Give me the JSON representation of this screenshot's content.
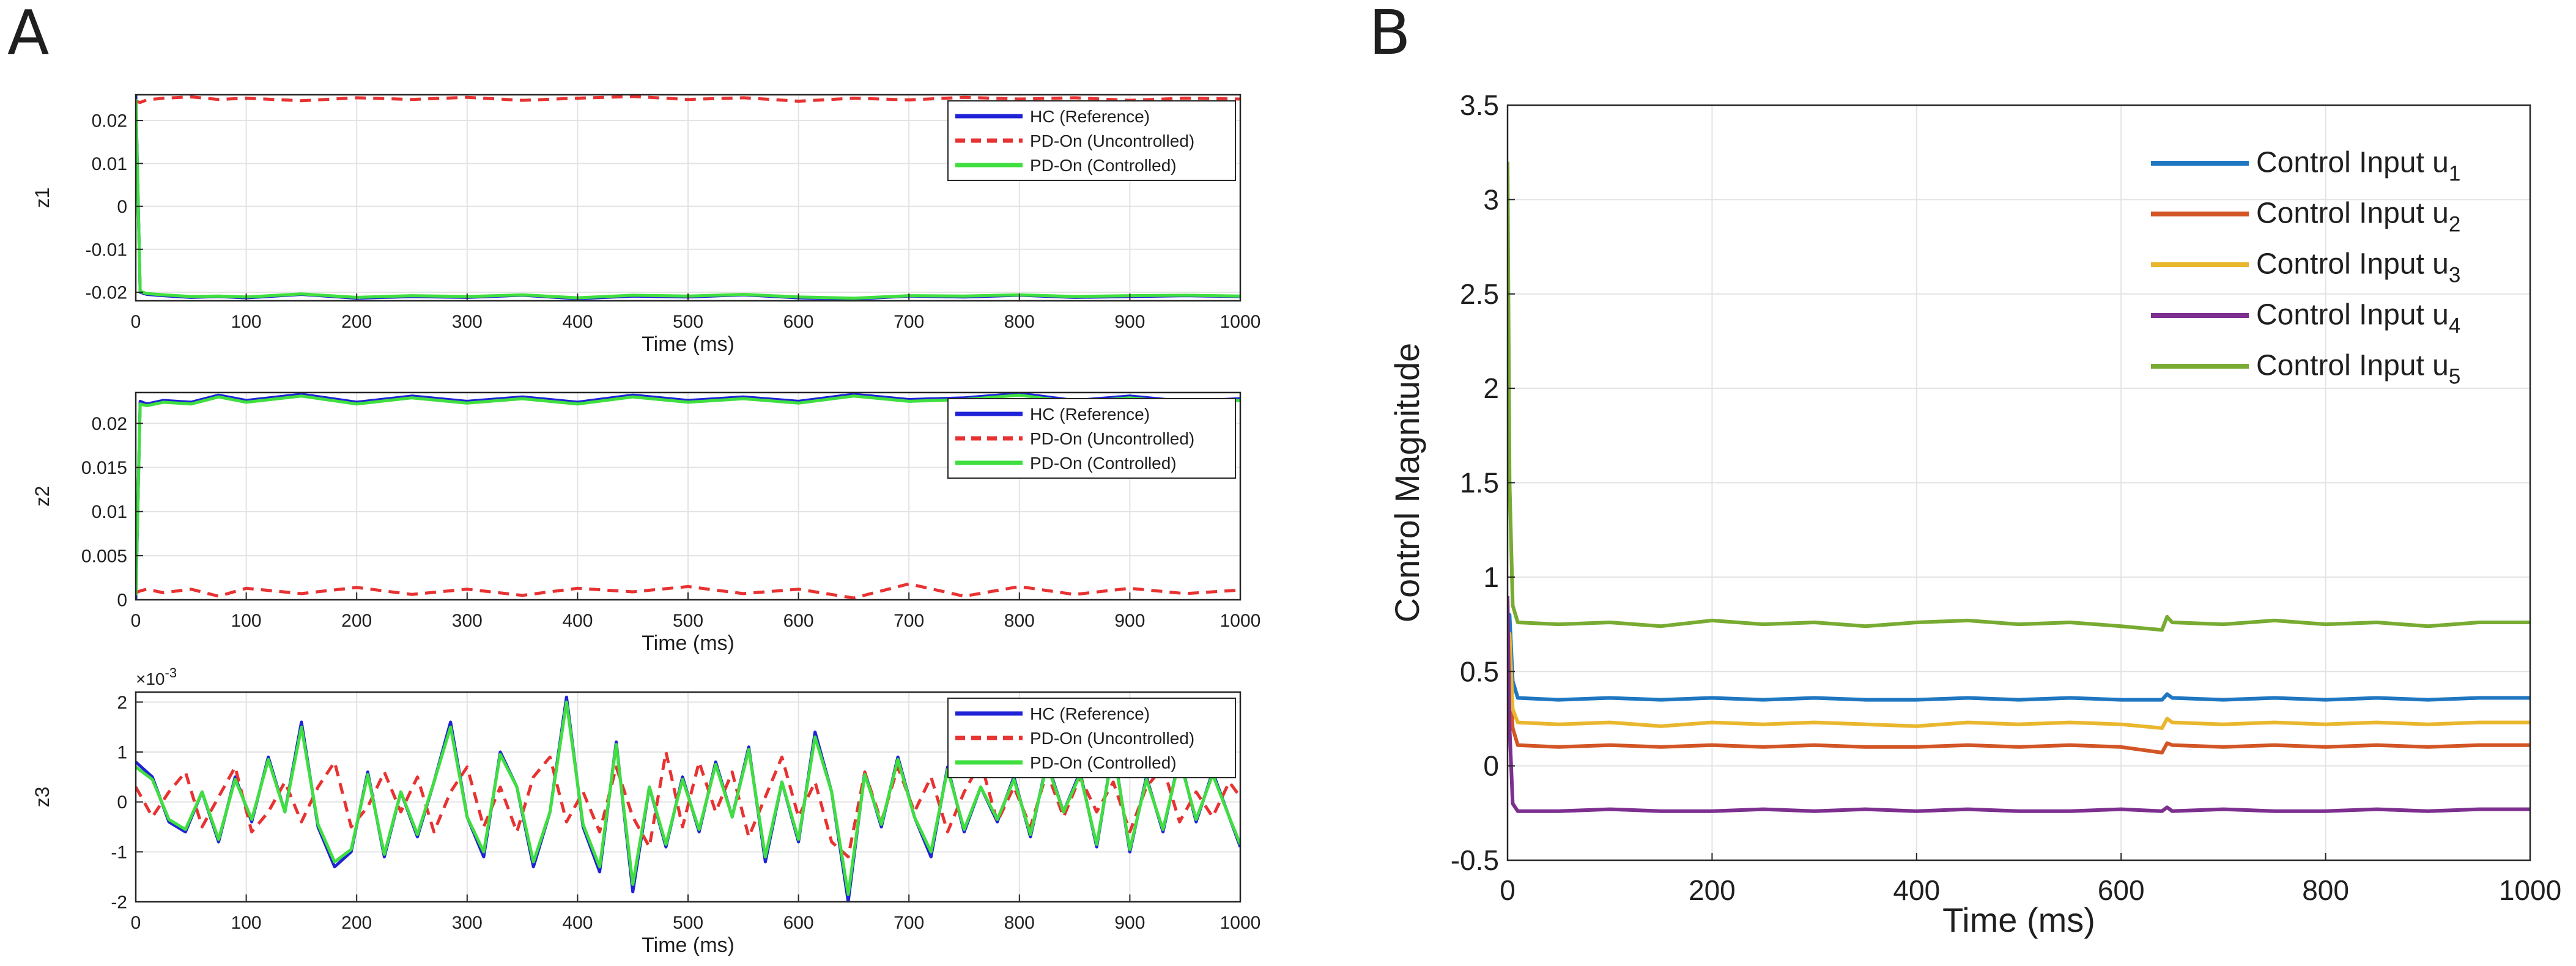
{
  "panels": {
    "A": {
      "label": "A"
    },
    "B": {
      "label": "B"
    }
  },
  "colors": {
    "reference": "#1f22d6",
    "uncontrolled": "#e83232",
    "controlled": "#3fdf3f",
    "u1": "#1f77c2",
    "u2": "#d35525",
    "u3": "#e9b72e",
    "u4": "#7d2f8f",
    "u5": "#78ab32"
  },
  "chart_data": [
    {
      "id": "z1",
      "type": "line",
      "panel": "A",
      "ylabel": "z1",
      "xlabel": "Time (ms)",
      "xlim": [
        0,
        1000
      ],
      "ylim": [
        -0.022,
        0.026
      ],
      "xticks": [
        0,
        100,
        200,
        300,
        400,
        500,
        600,
        700,
        800,
        900,
        1000
      ],
      "yticks": [
        -0.02,
        -0.01,
        0,
        0.01,
        0.02
      ],
      "ytick_labels": [
        "-0.02",
        "-0.01",
        "0",
        "0.01",
        "0.02"
      ],
      "grid": true,
      "legend_position": "top-right",
      "x": [
        0,
        4,
        10,
        25,
        50,
        75,
        100,
        150,
        200,
        250,
        300,
        350,
        400,
        450,
        500,
        550,
        600,
        650,
        700,
        750,
        800,
        850,
        900,
        950,
        1000
      ],
      "series": [
        {
          "name": "HC (Reference)",
          "color_key": "reference",
          "style": "solid",
          "values": [
            0.026,
            -0.02,
            -0.0205,
            -0.0208,
            -0.0212,
            -0.021,
            -0.0213,
            -0.0205,
            -0.0214,
            -0.021,
            -0.0212,
            -0.0207,
            -0.0215,
            -0.0209,
            -0.0211,
            -0.0206,
            -0.0213,
            -0.0216,
            -0.0209,
            -0.0211,
            -0.0207,
            -0.0212,
            -0.021,
            -0.0208,
            -0.021
          ]
        },
        {
          "name": "PD-On (Uncontrolled)",
          "color_key": "uncontrolled",
          "style": "dashed",
          "values": [
            0.0245,
            0.0242,
            0.0248,
            0.0252,
            0.0255,
            0.0249,
            0.0252,
            0.0246,
            0.0253,
            0.0249,
            0.0254,
            0.0247,
            0.0252,
            0.0256,
            0.0249,
            0.0253,
            0.0245,
            0.0252,
            0.0248,
            0.0254,
            0.025,
            0.0253,
            0.0247,
            0.0252,
            0.025
          ]
        },
        {
          "name": "PD-On (Controlled)",
          "color_key": "controlled",
          "style": "solid",
          "values": [
            0.025,
            -0.0198,
            -0.0203,
            -0.0206,
            -0.021,
            -0.0209,
            -0.0211,
            -0.0204,
            -0.0212,
            -0.0208,
            -0.021,
            -0.0206,
            -0.0213,
            -0.0207,
            -0.0209,
            -0.0205,
            -0.0211,
            -0.0214,
            -0.0208,
            -0.0209,
            -0.0206,
            -0.021,
            -0.0208,
            -0.0207,
            -0.0209
          ]
        }
      ]
    },
    {
      "id": "z2",
      "type": "line",
      "panel": "A",
      "ylabel": "z2",
      "xlabel": "Time (ms)",
      "xlim": [
        0,
        1000
      ],
      "ylim": [
        0,
        0.0235
      ],
      "xticks": [
        0,
        100,
        200,
        300,
        400,
        500,
        600,
        700,
        800,
        900,
        1000
      ],
      "yticks": [
        0,
        0.005,
        0.01,
        0.015,
        0.02
      ],
      "ytick_labels": [
        "0",
        "0.005",
        "0.01",
        "0.015",
        "0.02"
      ],
      "grid": true,
      "legend_position": "top-right",
      "x": [
        0,
        4,
        10,
        25,
        50,
        75,
        100,
        150,
        200,
        250,
        300,
        350,
        400,
        450,
        500,
        550,
        600,
        650,
        700,
        750,
        800,
        850,
        900,
        950,
        1000
      ],
      "series": [
        {
          "name": "HC (Reference)",
          "color_key": "reference",
          "style": "solid",
          "values": [
            0.0,
            0.0225,
            0.0222,
            0.0226,
            0.0224,
            0.0232,
            0.0226,
            0.0233,
            0.0224,
            0.0231,
            0.0225,
            0.023,
            0.0224,
            0.0232,
            0.0226,
            0.023,
            0.0225,
            0.0233,
            0.0227,
            0.0229,
            0.0234,
            0.0226,
            0.0231,
            0.0225,
            0.0228
          ]
        },
        {
          "name": "PD-On (Uncontrolled)",
          "color_key": "uncontrolled",
          "style": "dashed",
          "values": [
            0.0008,
            0.001,
            0.0012,
            0.0008,
            0.0012,
            0.0004,
            0.0013,
            0.0007,
            0.0014,
            0.0006,
            0.0012,
            0.0005,
            0.0013,
            0.0009,
            0.0015,
            0.0007,
            0.0012,
            0.0002,
            0.0018,
            0.0004,
            0.0015,
            0.0006,
            0.0013,
            0.0007,
            0.0011
          ]
        },
        {
          "name": "PD-On (Controlled)",
          "color_key": "controlled",
          "style": "solid",
          "values": [
            0.0005,
            0.0222,
            0.022,
            0.0224,
            0.0222,
            0.023,
            0.0224,
            0.0231,
            0.0222,
            0.0229,
            0.0223,
            0.0228,
            0.0222,
            0.023,
            0.0224,
            0.0228,
            0.0223,
            0.0231,
            0.0225,
            0.0227,
            0.0232,
            0.0224,
            0.0229,
            0.0223,
            0.0226
          ]
        }
      ]
    },
    {
      "id": "z3",
      "type": "line",
      "panel": "A",
      "ylabel": "z3",
      "xlabel": "Time (ms)",
      "exponent_label": "×10",
      "exponent_power": "-3",
      "xlim": [
        0,
        1000
      ],
      "ylim": [
        -2,
        2.2
      ],
      "xticks": [
        0,
        100,
        200,
        300,
        400,
        500,
        600,
        700,
        800,
        900,
        1000
      ],
      "yticks": [
        -2,
        -1,
        0,
        1,
        2
      ],
      "ytick_labels": [
        "-2",
        "-1",
        "0",
        "1",
        "2"
      ],
      "grid": true,
      "legend_position": "top-right",
      "x": [
        0,
        15,
        30,
        45,
        60,
        75,
        90,
        105,
        120,
        135,
        150,
        165,
        180,
        195,
        210,
        225,
        240,
        255,
        270,
        285,
        300,
        315,
        330,
        345,
        360,
        375,
        390,
        405,
        420,
        435,
        450,
        465,
        480,
        495,
        510,
        525,
        540,
        555,
        570,
        585,
        600,
        615,
        630,
        645,
        660,
        675,
        690,
        705,
        720,
        735,
        750,
        765,
        780,
        795,
        810,
        825,
        840,
        855,
        870,
        885,
        900,
        915,
        930,
        945,
        960,
        975,
        990,
        1000
      ],
      "series": [
        {
          "name": "HC (Reference)",
          "color_key": "reference",
          "style": "solid",
          "values": [
            0.8,
            0.5,
            -0.4,
            -0.6,
            0.2,
            -0.8,
            0.5,
            -0.4,
            0.9,
            -0.2,
            1.6,
            -0.5,
            -1.3,
            -1.0,
            0.6,
            -1.1,
            0.2,
            -0.7,
            0.4,
            1.6,
            -0.3,
            -1.1,
            1.0,
            0.3,
            -1.3,
            -0.2,
            2.1,
            -0.5,
            -1.4,
            1.2,
            -1.8,
            0.3,
            -0.9,
            0.5,
            -0.6,
            0.8,
            -0.3,
            1.1,
            -1.2,
            0.4,
            -0.8,
            1.4,
            0.2,
            -2.0,
            0.6,
            -0.5,
            0.9,
            -0.3,
            -1.1,
            0.7,
            -0.6,
            0.3,
            -0.4,
            0.5,
            -0.7,
            0.8,
            -0.2,
            0.6,
            -0.9,
            1.1,
            -1.0,
            0.5,
            -0.6,
            0.9,
            -0.4,
            0.6,
            -0.3,
            -0.9
          ]
        },
        {
          "name": "PD-On (Uncontrolled)",
          "color_key": "uncontrolled",
          "style": "dashed",
          "values": [
            0.3,
            -0.3,
            0.2,
            0.6,
            -0.5,
            0.1,
            0.7,
            -0.6,
            -0.2,
            0.4,
            -0.4,
            0.3,
            0.8,
            -0.5,
            -0.1,
            0.6,
            -0.2,
            0.5,
            -0.6,
            0.2,
            0.7,
            -0.5,
            0.3,
            -0.6,
            0.5,
            0.9,
            -0.4,
            0.2,
            -0.6,
            0.7,
            -0.3,
            -0.9,
            1.0,
            -0.5,
            0.8,
            -0.2,
            0.6,
            -0.7,
            0.1,
            0.9,
            -0.3,
            0.4,
            -0.8,
            -1.1,
            0.6,
            -0.4,
            0.7,
            -0.2,
            0.5,
            -0.6,
            0.2,
            0.8,
            -0.4,
            0.3,
            -0.5,
            0.6,
            -0.3,
            0.5,
            -0.2,
            0.4,
            -0.6,
            0.3,
            0.7,
            -0.4,
            0.2,
            -0.3,
            0.4,
            0.1
          ]
        },
        {
          "name": "PD-On (Controlled)",
          "color_key": "controlled",
          "style": "solid",
          "values": [
            0.7,
            0.45,
            -0.35,
            -0.55,
            0.2,
            -0.75,
            0.45,
            -0.35,
            0.85,
            -0.2,
            1.5,
            -0.45,
            -1.2,
            -0.95,
            0.55,
            -1.05,
            0.2,
            -0.65,
            0.4,
            1.5,
            -0.3,
            -1.0,
            0.95,
            0.3,
            -1.2,
            -0.2,
            2.0,
            -0.45,
            -1.3,
            1.15,
            -1.65,
            0.3,
            -0.85,
            0.45,
            -0.55,
            0.75,
            -0.3,
            1.05,
            -1.1,
            0.4,
            -0.75,
            1.3,
            0.2,
            -1.85,
            0.55,
            -0.45,
            0.85,
            -0.3,
            -1.0,
            0.65,
            -0.55,
            0.3,
            -0.35,
            0.45,
            -0.65,
            0.75,
            -0.2,
            0.55,
            -0.85,
            1.05,
            -0.95,
            0.45,
            -0.55,
            0.85,
            -0.35,
            0.55,
            -0.3,
            -0.85
          ]
        }
      ]
    },
    {
      "id": "controls",
      "type": "line",
      "panel": "B",
      "ylabel": "Control Magnitude",
      "xlabel": "Time (ms)",
      "xlim": [
        0,
        1000
      ],
      "ylim": [
        -0.5,
        3.5
      ],
      "xticks": [
        0,
        200,
        400,
        600,
        800,
        1000
      ],
      "yticks": [
        -0.5,
        0,
        0.5,
        1,
        1.5,
        2,
        2.5,
        3,
        3.5
      ],
      "ytick_labels": [
        "-0.5",
        "0",
        "0.5",
        "1",
        "1.5",
        "2",
        "2.5",
        "3",
        "3.5"
      ],
      "grid": true,
      "legend_position": "top-right",
      "x": [
        0,
        2,
        5,
        10,
        50,
        100,
        150,
        200,
        250,
        300,
        350,
        400,
        450,
        500,
        550,
        600,
        640,
        645,
        650,
        700,
        750,
        800,
        850,
        900,
        950,
        1000
      ],
      "series": [
        {
          "name": "Control Input u",
          "subscript": "1",
          "color_key": "u1",
          "style": "solid",
          "values": [
            0.3,
            0.8,
            0.45,
            0.36,
            0.35,
            0.36,
            0.35,
            0.36,
            0.35,
            0.36,
            0.35,
            0.35,
            0.36,
            0.35,
            0.36,
            0.35,
            0.35,
            0.38,
            0.36,
            0.35,
            0.36,
            0.35,
            0.36,
            0.35,
            0.36,
            0.36
          ]
        },
        {
          "name": "Control Input u",
          "subscript": "2",
          "color_key": "u2",
          "style": "solid",
          "values": [
            0.2,
            0.5,
            0.2,
            0.11,
            0.1,
            0.11,
            0.1,
            0.11,
            0.1,
            0.11,
            0.1,
            0.1,
            0.11,
            0.1,
            0.11,
            0.1,
            0.07,
            0.12,
            0.11,
            0.1,
            0.11,
            0.1,
            0.11,
            0.1,
            0.11,
            0.11
          ]
        },
        {
          "name": "Control Input u",
          "subscript": "3",
          "color_key": "u3",
          "style": "solid",
          "values": [
            0.5,
            0.7,
            0.3,
            0.23,
            0.22,
            0.23,
            0.21,
            0.23,
            0.22,
            0.23,
            0.22,
            0.21,
            0.23,
            0.22,
            0.23,
            0.22,
            0.2,
            0.25,
            0.23,
            0.22,
            0.23,
            0.22,
            0.23,
            0.22,
            0.23,
            0.23
          ]
        },
        {
          "name": "Control Input u",
          "subscript": "4",
          "color_key": "u4",
          "style": "solid",
          "values": [
            0.9,
            0.2,
            -0.2,
            -0.24,
            -0.24,
            -0.23,
            -0.24,
            -0.24,
            -0.23,
            -0.24,
            -0.23,
            -0.24,
            -0.23,
            -0.24,
            -0.24,
            -0.23,
            -0.24,
            -0.22,
            -0.24,
            -0.23,
            -0.24,
            -0.24,
            -0.23,
            -0.24,
            -0.23,
            -0.23
          ]
        },
        {
          "name": "Control Input u",
          "subscript": "5",
          "color_key": "u5",
          "style": "solid",
          "values": [
            3.2,
            1.5,
            0.85,
            0.76,
            0.75,
            0.76,
            0.74,
            0.77,
            0.75,
            0.76,
            0.74,
            0.76,
            0.77,
            0.75,
            0.76,
            0.74,
            0.72,
            0.79,
            0.76,
            0.75,
            0.77,
            0.75,
            0.76,
            0.74,
            0.76,
            0.76
          ]
        }
      ]
    }
  ]
}
